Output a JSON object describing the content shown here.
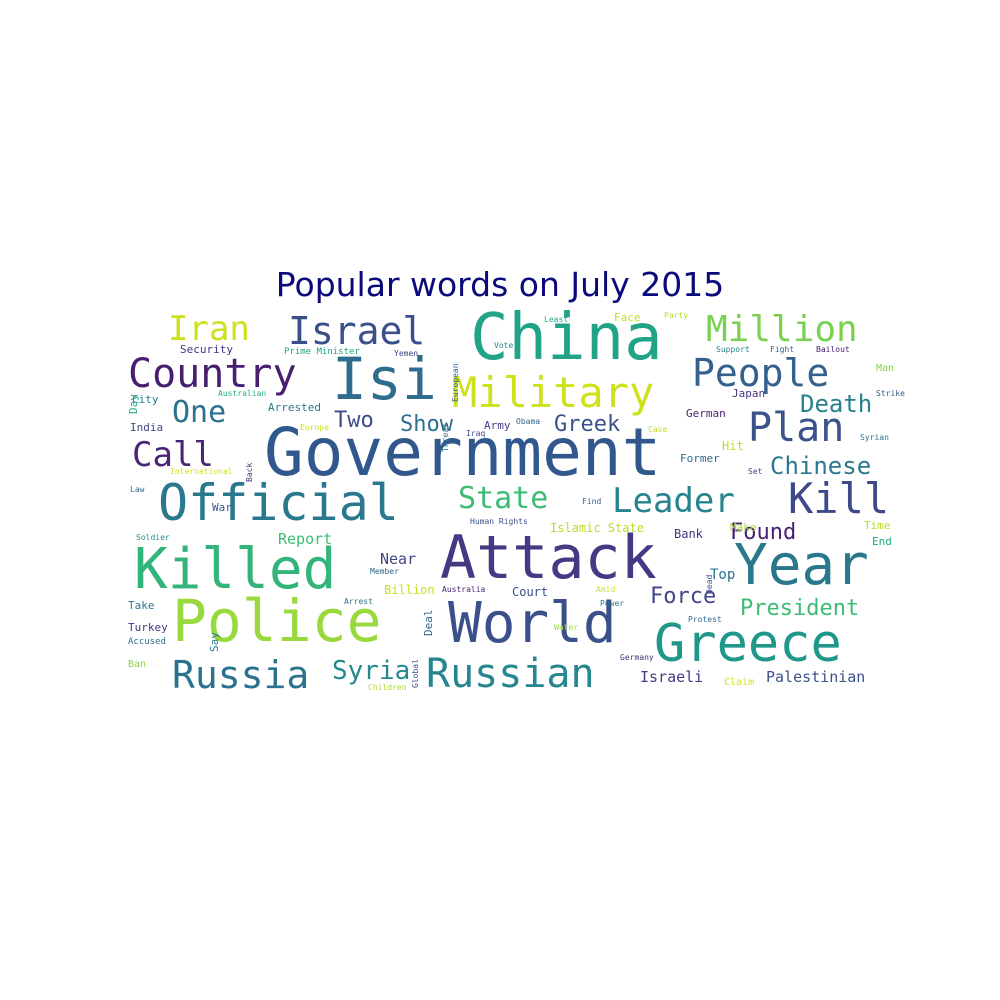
{
  "title": "Popular words on July 2015",
  "palette": {
    "title": "#0a0a7a",
    "dark_purple": "#440154",
    "indigo": "#3b2d6e",
    "blue": "#30538c",
    "steel": "#2f6d8e",
    "teal": "#21908c",
    "green": "#35b779",
    "lime": "#8fd744",
    "yellow": "#d3e21b"
  },
  "words": [
    {
      "id": "government",
      "text": "Government",
      "color": "#30588c"
    },
    {
      "id": "attack",
      "text": "Attack",
      "color": "#443a83"
    },
    {
      "id": "china",
      "text": "China",
      "color": "#20a386"
    },
    {
      "id": "isi",
      "text": "Isi",
      "color": "#2f6d8e"
    },
    {
      "id": "official",
      "text": "Official",
      "color": "#2a788e"
    },
    {
      "id": "killed",
      "text": "Killed",
      "color": "#33b47a"
    },
    {
      "id": "police",
      "text": "Police",
      "color": "#9ad93d"
    },
    {
      "id": "world",
      "text": "World",
      "color": "#3b4f8a"
    },
    {
      "id": "year",
      "text": "Year",
      "color": "#2a788e"
    },
    {
      "id": "greece",
      "text": "Greece",
      "color": "#1f978b"
    },
    {
      "id": "military",
      "text": "Military",
      "color": "#cde11d"
    },
    {
      "id": "country",
      "text": "Country",
      "color": "#481f70"
    },
    {
      "id": "israel",
      "text": "Israel",
      "color": "#3b4f8a"
    },
    {
      "id": "iran",
      "text": "Iran",
      "color": "#cde11d"
    },
    {
      "id": "million",
      "text": "Million",
      "color": "#7ad151"
    },
    {
      "id": "people",
      "text": "People",
      "color": "#35608d"
    },
    {
      "id": "plan",
      "text": "Plan",
      "color": "#3b528b"
    },
    {
      "id": "kill",
      "text": "Kill",
      "color": "#3e4989"
    },
    {
      "id": "leader",
      "text": "Leader",
      "color": "#25848e"
    },
    {
      "id": "state",
      "text": "State",
      "color": "#3ebc74"
    },
    {
      "id": "russia",
      "text": "Russia",
      "color": "#2c728e"
    },
    {
      "id": "russian",
      "text": "Russian",
      "color": "#24868e"
    },
    {
      "id": "one",
      "text": "One",
      "color": "#2c728e"
    },
    {
      "id": "call",
      "text": "Call",
      "color": "#482575"
    },
    {
      "id": "syria",
      "text": "Syria",
      "color": "#23898e"
    },
    {
      "id": "death",
      "text": "Death",
      "color": "#26828e"
    },
    {
      "id": "chinese",
      "text": "Chinese",
      "color": "#2a788e"
    },
    {
      "id": "president",
      "text": "President",
      "color": "#3dbc74"
    },
    {
      "id": "found",
      "text": "Found",
      "color": "#481f70"
    },
    {
      "id": "force",
      "text": "Force",
      "color": "#404688"
    },
    {
      "id": "two",
      "text": "Two",
      "color": "#3e4c8a"
    },
    {
      "id": "show",
      "text": "Show",
      "color": "#2e6e8e"
    },
    {
      "id": "greek",
      "text": "Greek",
      "color": "#3b528b"
    },
    {
      "id": "report",
      "text": "Report",
      "color": "#3dbc74"
    },
    {
      "id": "near",
      "text": "Near",
      "color": "#414487"
    },
    {
      "id": "palestinian",
      "text": "Palestinian",
      "color": "#3b528b"
    },
    {
      "id": "israeli",
      "text": "Israeli",
      "color": "#443983"
    },
    {
      "id": "top",
      "text": "Top",
      "color": "#2c728e"
    },
    {
      "id": "court",
      "text": "Court",
      "color": "#3e4c8a"
    },
    {
      "id": "billion",
      "text": "Billion",
      "color": "#c8e020"
    },
    {
      "id": "bank",
      "text": "Bank",
      "color": "#46337f"
    },
    {
      "id": "german",
      "text": "German",
      "color": "#482475"
    },
    {
      "id": "japan",
      "text": "Japan",
      "color": "#46327e"
    },
    {
      "id": "arrested",
      "text": "Arrested",
      "color": "#2a788e"
    },
    {
      "id": "security",
      "text": "Security",
      "color": "#46327e"
    },
    {
      "id": "hit",
      "text": "Hit",
      "color": "#b8de29"
    },
    {
      "id": "former",
      "text": "Former",
      "color": "#2d708e"
    },
    {
      "id": "islamic-state",
      "text": "Islamic State",
      "color": "#b5de2b"
    },
    {
      "id": "deal",
      "text": "Deal",
      "color": "#31688e"
    },
    {
      "id": "army",
      "text": "Army",
      "color": "#433e85"
    },
    {
      "id": "turkey",
      "text": "Turkey",
      "color": "#453781"
    },
    {
      "id": "take",
      "text": "Take",
      "color": "#2a788e"
    },
    {
      "id": "say",
      "text": "Say",
      "color": "#2a788e"
    },
    {
      "id": "make",
      "text": "Make",
      "color": "#a5db36"
    },
    {
      "id": "end",
      "text": "End",
      "color": "#22a884"
    },
    {
      "id": "time",
      "text": "Time",
      "color": "#b5de2b"
    },
    {
      "id": "city",
      "text": "City",
      "color": "#2a788e"
    },
    {
      "id": "india",
      "text": "India",
      "color": "#3e4a89"
    },
    {
      "id": "war",
      "text": "War",
      "color": "#39558c"
    },
    {
      "id": "day",
      "text": "Day",
      "color": "#22a884"
    },
    {
      "id": "face",
      "text": "Face",
      "color": "#bddf26"
    },
    {
      "id": "man",
      "text": "Man",
      "color": "#84d44b"
    },
    {
      "id": "ban",
      "text": "Ban",
      "color": "#8bd646"
    },
    {
      "id": "claim",
      "text": "Claim",
      "color": "#d2e21b"
    },
    {
      "id": "accused",
      "text": "Accused",
      "color": "#2c728e"
    },
    {
      "id": "prime-minister",
      "text": "Prime Minister",
      "color": "#20a386"
    },
    {
      "id": "yemen",
      "text": "Yemen",
      "color": "#414487"
    },
    {
      "id": "support",
      "text": "Support",
      "color": "#25858e"
    },
    {
      "id": "fight",
      "text": "Fight",
      "color": "#33638d"
    },
    {
      "id": "bailout",
      "text": "Bailout",
      "color": "#482475"
    },
    {
      "id": "party",
      "text": "Party",
      "color": "#b5de2b"
    },
    {
      "id": "least",
      "text": "Least",
      "color": "#22a884"
    },
    {
      "id": "vote",
      "text": "Vote",
      "color": "#25858e"
    },
    {
      "id": "australian",
      "text": "Australian",
      "color": "#27ad81"
    },
    {
      "id": "europe",
      "text": "Europe",
      "color": "#cde11d"
    },
    {
      "id": "obama",
      "text": "Obama",
      "color": "#31688e"
    },
    {
      "id": "case",
      "text": "Case",
      "color": "#c2df23"
    },
    {
      "id": "strike",
      "text": "Strike",
      "color": "#35608d"
    },
    {
      "id": "syrian",
      "text": "Syrian",
      "color": "#2c728e"
    },
    {
      "id": "set",
      "text": "Set",
      "color": "#3e4c8a"
    },
    {
      "id": "international",
      "text": "International",
      "color": "#d8e219"
    },
    {
      "id": "law",
      "text": "Law",
      "color": "#2c728e"
    },
    {
      "id": "iraq",
      "text": "Iraq",
      "color": "#3e4c8a"
    },
    {
      "id": "find",
      "text": "Find",
      "color": "#35608d"
    },
    {
      "id": "human-rights",
      "text": "Human Rights",
      "color": "#3b528b"
    },
    {
      "id": "soldier",
      "text": "Soldier",
      "color": "#21918c"
    },
    {
      "id": "member",
      "text": "Member",
      "color": "#31688e"
    },
    {
      "id": "arrest",
      "text": "Arrest",
      "color": "#2c728e"
    },
    {
      "id": "australia",
      "text": "Australia",
      "color": "#482475"
    },
    {
      "id": "amid",
      "text": "Amid",
      "color": "#d0e11c"
    },
    {
      "id": "power",
      "text": "Power",
      "color": "#2c728e"
    },
    {
      "id": "protest",
      "text": "Protest",
      "color": "#31688e"
    },
    {
      "id": "water",
      "text": "Water",
      "color": "#a0da39"
    },
    {
      "id": "germany",
      "text": "Germany",
      "color": "#46327e"
    },
    {
      "id": "children",
      "text": "Children",
      "color": "#aadc32"
    },
    {
      "id": "european",
      "text": "European",
      "color": "#35608d"
    },
    {
      "id": "threat",
      "text": "Threat",
      "color": "#2c728e"
    },
    {
      "id": "back",
      "text": "Back",
      "color": "#46327e"
    },
    {
      "id": "global",
      "text": "Global",
      "color": "#3b528b"
    },
    {
      "id": "dead",
      "text": "Dead",
      "color": "#3e4a89"
    }
  ]
}
